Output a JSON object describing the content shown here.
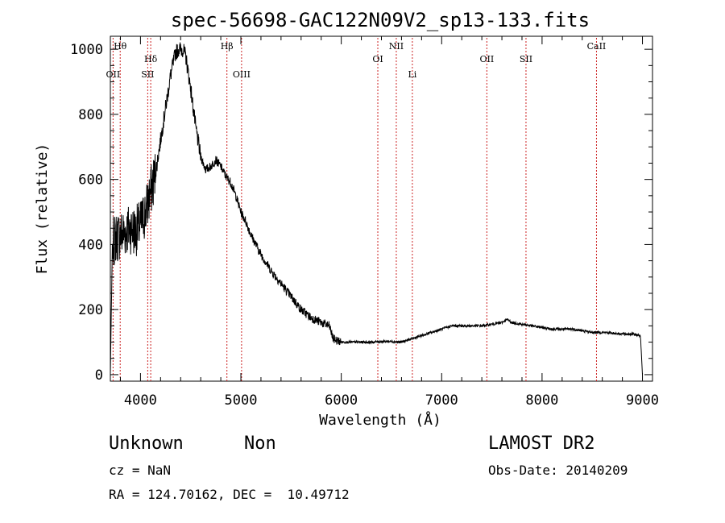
{
  "chart_data": {
    "type": "line",
    "title": "spec-56698-GAC122N09V2_sp13-133.fits",
    "xlabel": "Wavelength (Å)",
    "ylabel": "Flux (relative)",
    "xlim": [
      3700,
      9100
    ],
    "ylim": [
      -20,
      1040
    ],
    "xticks": [
      4000,
      5000,
      6000,
      7000,
      8000,
      9000
    ],
    "yticks": [
      0,
      200,
      400,
      600,
      800,
      1000
    ],
    "xtick_labels": [
      "4000",
      "5000",
      "6000",
      "7000",
      "8000",
      "9000"
    ],
    "ytick_labels": [
      "0",
      "200",
      "400",
      "600",
      "800",
      "1000"
    ],
    "line_color": "#000000",
    "marker_color": "#cc2222",
    "spectrum": {
      "x": [
        3700,
        3720,
        3750,
        3800,
        3850,
        3900,
        3950,
        4000,
        4050,
        4100,
        4150,
        4200,
        4250,
        4300,
        4350,
        4380,
        4420,
        4450,
        4500,
        4550,
        4600,
        4650,
        4700,
        4750,
        4800,
        4850,
        4900,
        4950,
        5000,
        5050,
        5100,
        5200,
        5300,
        5400,
        5500,
        5600,
        5700,
        5800,
        5880,
        5900,
        5920,
        6000,
        6100,
        6200,
        6300,
        6400,
        6500,
        6600,
        6700,
        6800,
        6900,
        7000,
        7100,
        7200,
        7300,
        7400,
        7500,
        7600,
        7650,
        7700,
        7800,
        7900,
        8000,
        8100,
        8200,
        8300,
        8400,
        8500,
        8600,
        8700,
        8800,
        8900,
        8980,
        9000
      ],
      "y": [
        0,
        400,
        420,
        430,
        440,
        450,
        440,
        460,
        500,
        560,
        620,
        720,
        820,
        920,
        990,
        1000,
        1000,
        980,
        880,
        760,
        670,
        630,
        640,
        660,
        640,
        610,
        590,
        550,
        500,
        470,
        430,
        370,
        320,
        280,
        240,
        200,
        175,
        160,
        150,
        130,
        110,
        100,
        100,
        100,
        100,
        102,
        102,
        100,
        110,
        120,
        130,
        140,
        150,
        150,
        150,
        150,
        155,
        160,
        170,
        160,
        155,
        150,
        145,
        140,
        140,
        140,
        135,
        130,
        130,
        128,
        125,
        125,
        120,
        0
      ]
    },
    "lines": [
      {
        "label": "Hθ",
        "x": 3798,
        "row": 0
      },
      {
        "label": "OII",
        "x": 3727,
        "row": 2
      },
      {
        "label": "Hδ",
        "x": 4102,
        "row": 1
      },
      {
        "label": "SII",
        "x": 4072,
        "row": 2
      },
      {
        "label": "Hβ",
        "x": 4861,
        "row": 0
      },
      {
        "label": "OIII",
        "x": 5007,
        "row": 2
      },
      {
        "label": "OI",
        "x": 6364,
        "row": 1
      },
      {
        "label": "NII",
        "x": 6548,
        "row": 0
      },
      {
        "label": "Li",
        "x": 6708,
        "row": 2
      },
      {
        "label": "OII",
        "x": 7450,
        "row": 1
      },
      {
        "label": "SII",
        "x": 7840,
        "row": 1
      },
      {
        "label": "CaII",
        "x": 8542,
        "row": 0
      }
    ]
  },
  "info": {
    "object_class": "Unknown",
    "object_subclass": "Non",
    "survey": "LAMOST DR2",
    "cz": "cz = NaN",
    "obs_date": "Obs-Date: 20140209",
    "coords": "RA = 124.70162, DEC =  10.49712"
  }
}
